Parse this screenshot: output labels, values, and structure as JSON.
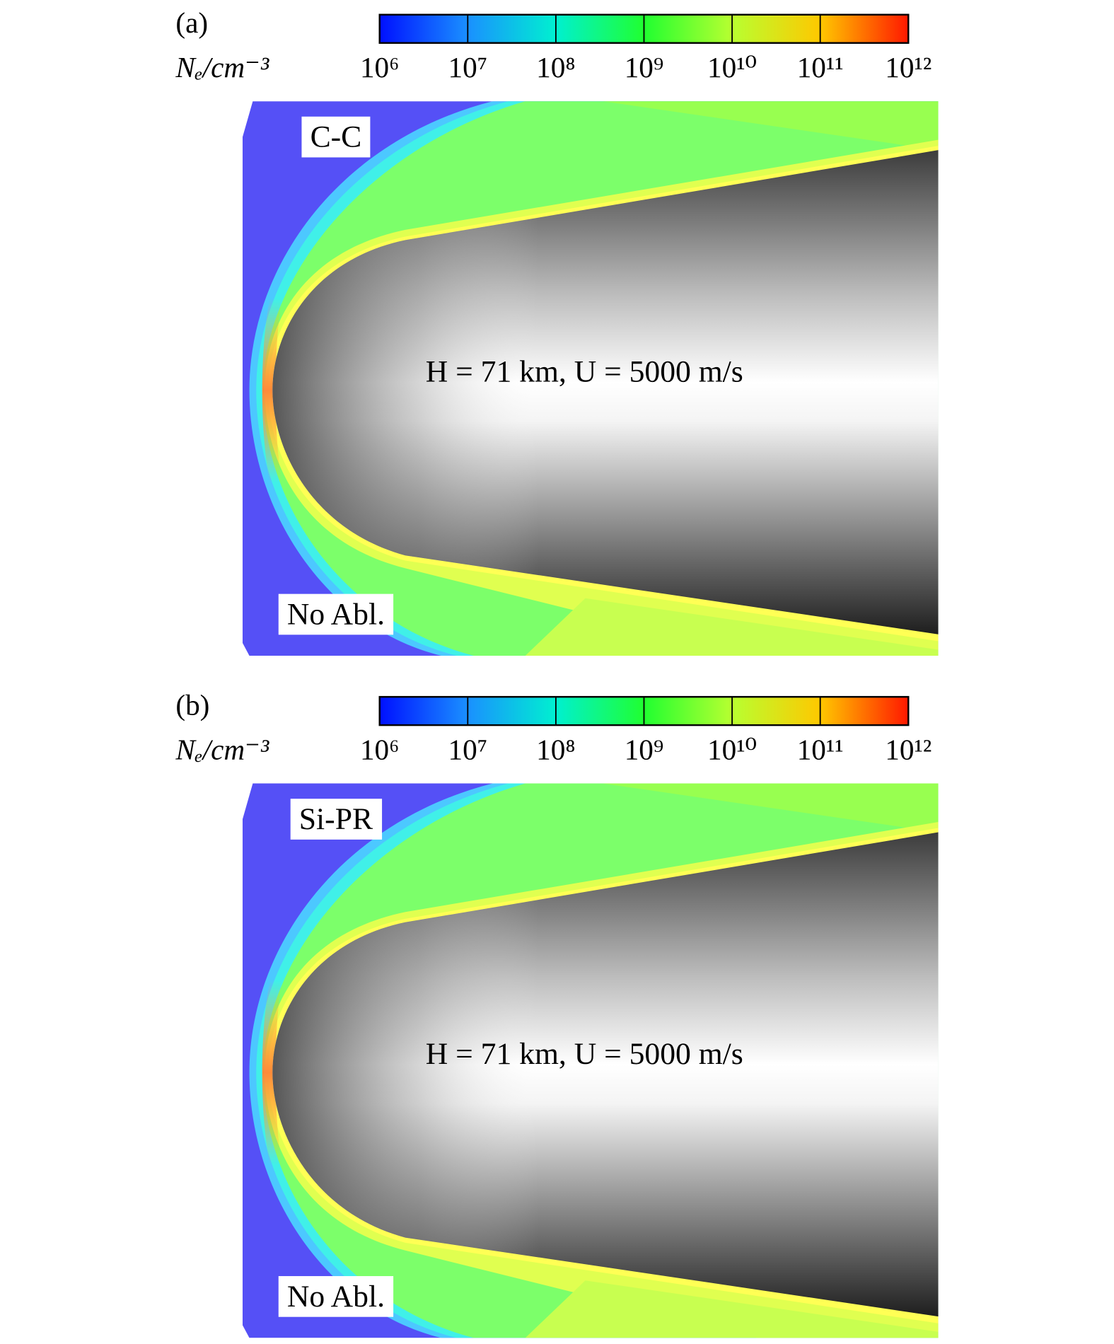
{
  "chart_data": [
    {
      "type": "contour",
      "panel_label": "(a)",
      "material": "C-C",
      "case": "No Abl.",
      "condition": "H = 71 km, U = 5000 m/s",
      "colorbar": {
        "label": "Nₑ/cm⁻³",
        "log": true,
        "lim": [
          1000000,
          1000000000000
        ],
        "ticks": [
          {
            "value": 1000000,
            "label": "10⁶"
          },
          {
            "value": 10000000,
            "label": "10⁷"
          },
          {
            "value": 100000000,
            "label": "10⁸"
          },
          {
            "value": 1000000000,
            "label": "10⁹"
          },
          {
            "value": 10000000000,
            "label": "10¹⁰"
          },
          {
            "value": 100000000000,
            "label": "10¹¹"
          },
          {
            "value": 1000000000000,
            "label": "10¹²"
          }
        ],
        "colors": [
          "#0010ff",
          "#1a90ff",
          "#00f0d0",
          "#20ff30",
          "#b8ff30",
          "#ffc800",
          "#ff1800"
        ]
      }
    },
    {
      "type": "contour",
      "panel_label": "(b)",
      "material": "Si-PR",
      "case": "No Abl.",
      "condition": "H = 71 km, U = 5000 m/s",
      "colorbar": {
        "label": "Nₑ/cm⁻³",
        "log": true,
        "lim": [
          1000000,
          1000000000000
        ],
        "ticks": [
          {
            "value": 1000000,
            "label": "10⁶"
          },
          {
            "value": 10000000,
            "label": "10⁷"
          },
          {
            "value": 100000000,
            "label": "10⁸"
          },
          {
            "value": 1000000000,
            "label": "10⁹"
          },
          {
            "value": 10000000000,
            "label": "10¹⁰"
          },
          {
            "value": 100000000000,
            "label": "10¹¹"
          },
          {
            "value": 1000000000000,
            "label": "10¹²"
          }
        ],
        "colors": [
          "#0010ff",
          "#1a90ff",
          "#00f0d0",
          "#20ff30",
          "#b8ff30",
          "#ffc800",
          "#ff1800"
        ]
      }
    }
  ]
}
